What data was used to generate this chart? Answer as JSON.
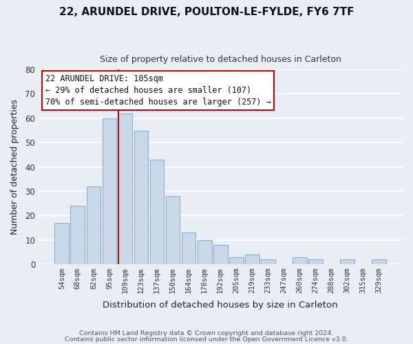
{
  "title1": "22, ARUNDEL DRIVE, POULTON-LE-FYLDE, FY6 7TF",
  "title2": "Size of property relative to detached houses in Carleton",
  "xlabel": "Distribution of detached houses by size in Carleton",
  "ylabel": "Number of detached properties",
  "bar_labels": [
    "54sqm",
    "68sqm",
    "82sqm",
    "95sqm",
    "109sqm",
    "123sqm",
    "137sqm",
    "150sqm",
    "164sqm",
    "178sqm",
    "192sqm",
    "205sqm",
    "219sqm",
    "233sqm",
    "247sqm",
    "260sqm",
    "274sqm",
    "288sqm",
    "302sqm",
    "315sqm",
    "329sqm"
  ],
  "bar_values": [
    17,
    24,
    32,
    60,
    62,
    55,
    43,
    28,
    13,
    10,
    8,
    3,
    4,
    2,
    0,
    3,
    2,
    0,
    2,
    0,
    2
  ],
  "bar_color": "#c8d8ea",
  "bar_edge_color": "#8ab0cc",
  "vline_color": "#cc0000",
  "ylim": [
    0,
    80
  ],
  "yticks": [
    0,
    10,
    20,
    30,
    40,
    50,
    60,
    70,
    80
  ],
  "annotation_title": "22 ARUNDEL DRIVE: 105sqm",
  "annotation_line1": "← 29% of detached houses are smaller (107)",
  "annotation_line2": "70% of semi-detached houses are larger (257) →",
  "annotation_box_color": "#ffffff",
  "annotation_box_edge": "#cc0000",
  "footer1": "Contains HM Land Registry data © Crown copyright and database right 2024.",
  "footer2": "Contains public sector information licensed under the Open Government Licence v3.0.",
  "fig_bg_color": "#e8eef4",
  "plot_bg_color": "#e8eef4",
  "grid_color": "#ffffff"
}
